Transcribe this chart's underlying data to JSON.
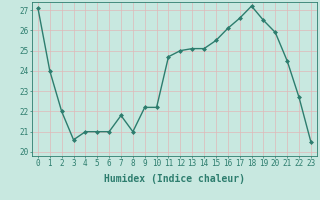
{
  "x": [
    0,
    1,
    2,
    3,
    4,
    5,
    6,
    7,
    8,
    9,
    10,
    11,
    12,
    13,
    14,
    15,
    16,
    17,
    18,
    19,
    20,
    21,
    22,
    23
  ],
  "y": [
    27.1,
    24.0,
    22.0,
    20.6,
    21.0,
    21.0,
    21.0,
    21.8,
    21.0,
    22.2,
    22.2,
    24.7,
    25.0,
    25.1,
    25.1,
    25.5,
    26.1,
    26.6,
    27.2,
    26.5,
    25.9,
    24.5,
    22.7,
    20.5
  ],
  "line_color": "#2d7d6e",
  "marker": "D",
  "marker_size": 2.0,
  "bg_color": "#c8e8e0",
  "grid_color": "#e0b8b8",
  "axis_color": "#2d7d6e",
  "xlabel": "Humidex (Indice chaleur)",
  "ylim": [
    19.8,
    27.4
  ],
  "yticks": [
    20,
    21,
    22,
    23,
    24,
    25,
    26,
    27
  ],
  "xticks": [
    0,
    1,
    2,
    3,
    4,
    5,
    6,
    7,
    8,
    9,
    10,
    11,
    12,
    13,
    14,
    15,
    16,
    17,
    18,
    19,
    20,
    21,
    22,
    23
  ],
  "xtick_labels": [
    "0",
    "1",
    "2",
    "3",
    "4",
    "5",
    "6",
    "7",
    "8",
    "9",
    "10",
    "11",
    "12",
    "13",
    "14",
    "15",
    "16",
    "17",
    "18",
    "19",
    "20",
    "21",
    "22",
    "23"
  ],
  "xlabel_fontsize": 7,
  "tick_fontsize": 5.5,
  "linewidth": 1.0
}
